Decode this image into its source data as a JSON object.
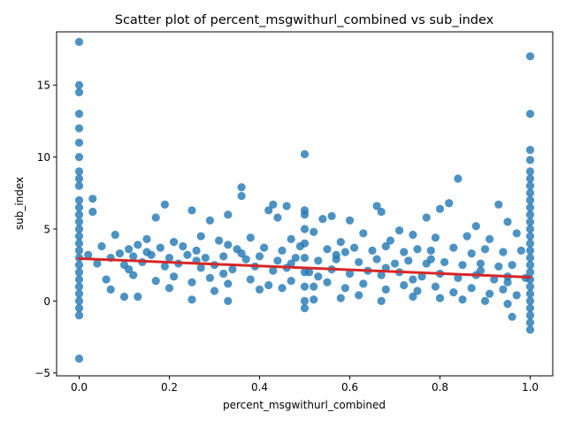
{
  "chart_data": {
    "type": "scatter",
    "title": "Scatter plot of percent_msgwithurl_combined vs sub_index",
    "xlabel": "percent_msgwithurl_combined",
    "ylabel": "sub_index",
    "xlim": [
      -0.05,
      1.05
    ],
    "ylim": [
      -5.2,
      18.7
    ],
    "xticks": [
      0.0,
      0.2,
      0.4,
      0.6,
      0.8,
      1.0
    ],
    "xtick_labels": [
      "0.0",
      "0.2",
      "0.4",
      "0.6",
      "0.8",
      "1.0"
    ],
    "yticks": [
      -5,
      0,
      5,
      10,
      15
    ],
    "ytick_labels": [
      "−5",
      "0",
      "5",
      "10",
      "15"
    ],
    "grid": false,
    "legend": "none",
    "colors": {
      "points": "#1f77b4",
      "regression_line": "#d62728"
    },
    "regression_line": {
      "x": [
        0.0,
        1.0
      ],
      "y": [
        2.95,
        1.65
      ]
    },
    "series": [
      {
        "points": [
          [
            0.0,
            18.0
          ],
          [
            0.0,
            15.0
          ],
          [
            0.0,
            14.5
          ],
          [
            0.0,
            13.0
          ],
          [
            0.0,
            12.0
          ],
          [
            0.0,
            11.0
          ],
          [
            0.0,
            10.0
          ],
          [
            0.0,
            9.0
          ],
          [
            0.0,
            8.5
          ],
          [
            0.0,
            8.0
          ],
          [
            0.0,
            7.0
          ],
          [
            0.0,
            6.5
          ],
          [
            0.0,
            6.0
          ],
          [
            0.0,
            5.5
          ],
          [
            0.0,
            5.0
          ],
          [
            0.0,
            4.5
          ],
          [
            0.0,
            4.0
          ],
          [
            0.0,
            3.5
          ],
          [
            0.0,
            3.0
          ],
          [
            0.0,
            2.5
          ],
          [
            0.0,
            2.0
          ],
          [
            0.0,
            1.5
          ],
          [
            0.0,
            1.0
          ],
          [
            0.0,
            0.5
          ],
          [
            0.0,
            0.0
          ],
          [
            0.0,
            -0.5
          ],
          [
            0.0,
            -1.0
          ],
          [
            0.0,
            -4.0
          ],
          [
            1.0,
            17.0
          ],
          [
            1.0,
            13.0
          ],
          [
            1.0,
            10.5
          ],
          [
            1.0,
            9.8
          ],
          [
            1.0,
            9.0
          ],
          [
            1.0,
            8.5
          ],
          [
            1.0,
            8.0
          ],
          [
            1.0,
            7.5
          ],
          [
            1.0,
            7.0
          ],
          [
            1.0,
            6.5
          ],
          [
            1.0,
            6.0
          ],
          [
            1.0,
            5.5
          ],
          [
            1.0,
            5.0
          ],
          [
            1.0,
            4.5
          ],
          [
            1.0,
            4.0
          ],
          [
            1.0,
            3.5
          ],
          [
            1.0,
            3.0
          ],
          [
            1.0,
            2.5
          ],
          [
            1.0,
            2.0
          ],
          [
            1.0,
            1.5
          ],
          [
            1.0,
            1.0
          ],
          [
            1.0,
            0.5
          ],
          [
            1.0,
            0.0
          ],
          [
            1.0,
            -0.5
          ],
          [
            1.0,
            -1.0
          ],
          [
            1.0,
            -1.5
          ],
          [
            1.0,
            -2.0
          ],
          [
            0.5,
            10.2
          ],
          [
            0.5,
            6.3
          ],
          [
            0.5,
            6.0
          ],
          [
            0.5,
            5.0
          ],
          [
            0.5,
            4.0
          ],
          [
            0.5,
            3.0
          ],
          [
            0.5,
            2.0
          ],
          [
            0.5,
            1.0
          ],
          [
            0.5,
            0.0
          ],
          [
            0.5,
            -0.5
          ],
          [
            0.84,
            8.5
          ],
          [
            0.36,
            7.9
          ],
          [
            0.36,
            7.3
          ],
          [
            0.03,
            7.1
          ],
          [
            0.19,
            6.7
          ],
          [
            0.43,
            6.7
          ],
          [
            0.46,
            6.6
          ],
          [
            0.66,
            6.6
          ],
          [
            0.82,
            6.8
          ],
          [
            0.93,
            6.7
          ],
          [
            0.25,
            6.3
          ],
          [
            0.42,
            6.3
          ],
          [
            0.03,
            6.2
          ],
          [
            0.67,
            6.2
          ],
          [
            0.8,
            6.4
          ],
          [
            0.33,
            6.0
          ],
          [
            0.56,
            5.9
          ],
          [
            0.77,
            5.8
          ],
          [
            0.95,
            5.5
          ],
          [
            0.17,
            5.8
          ],
          [
            0.29,
            5.6
          ],
          [
            0.44,
            5.8
          ],
          [
            0.54,
            5.7
          ],
          [
            0.6,
            5.6
          ],
          [
            0.71,
            4.9
          ],
          [
            0.88,
            5.2
          ],
          [
            0.08,
            4.6
          ],
          [
            0.15,
            4.3
          ],
          [
            0.21,
            4.1
          ],
          [
            0.27,
            4.5
          ],
          [
            0.31,
            4.2
          ],
          [
            0.38,
            4.4
          ],
          [
            0.47,
            4.3
          ],
          [
            0.52,
            4.8
          ],
          [
            0.58,
            4.1
          ],
          [
            0.63,
            4.7
          ],
          [
            0.69,
            4.2
          ],
          [
            0.74,
            4.6
          ],
          [
            0.79,
            4.4
          ],
          [
            0.86,
            4.5
          ],
          [
            0.91,
            4.3
          ],
          [
            0.97,
            4.7
          ],
          [
            0.05,
            3.8
          ],
          [
            0.11,
            3.6
          ],
          [
            0.13,
            3.9
          ],
          [
            0.18,
            3.7
          ],
          [
            0.23,
            3.8
          ],
          [
            0.26,
            3.5
          ],
          [
            0.33,
            3.9
          ],
          [
            0.35,
            3.6
          ],
          [
            0.41,
            3.7
          ],
          [
            0.45,
            3.5
          ],
          [
            0.49,
            3.8
          ],
          [
            0.55,
            3.6
          ],
          [
            0.59,
            3.4
          ],
          [
            0.61,
            3.7
          ],
          [
            0.65,
            3.5
          ],
          [
            0.68,
            3.8
          ],
          [
            0.72,
            3.4
          ],
          [
            0.75,
            3.6
          ],
          [
            0.78,
            3.5
          ],
          [
            0.83,
            3.7
          ],
          [
            0.87,
            3.3
          ],
          [
            0.9,
            3.6
          ],
          [
            0.94,
            3.4
          ],
          [
            0.98,
            3.5
          ],
          [
            0.02,
            3.2
          ],
          [
            0.07,
            3.0
          ],
          [
            0.09,
            3.3
          ],
          [
            0.12,
            3.1
          ],
          [
            0.16,
            3.2
          ],
          [
            0.2,
            3.0
          ],
          [
            0.24,
            3.2
          ],
          [
            0.28,
            3.0
          ],
          [
            0.32,
            3.1
          ],
          [
            0.37,
            2.9
          ],
          [
            0.4,
            3.1
          ],
          [
            0.44,
            2.8
          ],
          [
            0.48,
            3.0
          ],
          [
            0.53,
            2.8
          ],
          [
            0.57,
            2.9
          ],
          [
            0.62,
            2.7
          ],
          [
            0.66,
            2.9
          ],
          [
            0.7,
            2.6
          ],
          [
            0.73,
            2.8
          ],
          [
            0.77,
            2.6
          ],
          [
            0.81,
            2.7
          ],
          [
            0.85,
            2.5
          ],
          [
            0.89,
            2.6
          ],
          [
            0.93,
            2.4
          ],
          [
            0.96,
            2.5
          ],
          [
            0.04,
            2.6
          ],
          [
            0.1,
            2.5
          ],
          [
            0.14,
            2.7
          ],
          [
            0.19,
            2.4
          ],
          [
            0.22,
            2.6
          ],
          [
            0.27,
            2.3
          ],
          [
            0.3,
            2.5
          ],
          [
            0.34,
            2.2
          ],
          [
            0.39,
            2.4
          ],
          [
            0.43,
            2.1
          ],
          [
            0.46,
            2.3
          ],
          [
            0.51,
            2.0
          ],
          [
            0.56,
            2.2
          ],
          [
            0.6,
            1.9
          ],
          [
            0.64,
            2.1
          ],
          [
            0.67,
            1.8
          ],
          [
            0.71,
            2.0
          ],
          [
            0.76,
            1.7
          ],
          [
            0.8,
            1.9
          ],
          [
            0.84,
            1.6
          ],
          [
            0.88,
            1.8
          ],
          [
            0.92,
            1.5
          ],
          [
            0.95,
            1.7
          ],
          [
            0.99,
            1.6
          ],
          [
            0.06,
            1.5
          ],
          [
            0.12,
            1.8
          ],
          [
            0.17,
            1.4
          ],
          [
            0.21,
            1.7
          ],
          [
            0.25,
            1.3
          ],
          [
            0.29,
            1.6
          ],
          [
            0.33,
            1.2
          ],
          [
            0.38,
            1.5
          ],
          [
            0.42,
            1.1
          ],
          [
            0.47,
            1.4
          ],
          [
            0.52,
            1.0
          ],
          [
            0.55,
            1.3
          ],
          [
            0.59,
            0.9
          ],
          [
            0.63,
            1.2
          ],
          [
            0.68,
            0.8
          ],
          [
            0.72,
            1.1
          ],
          [
            0.75,
            0.7
          ],
          [
            0.79,
            1.0
          ],
          [
            0.83,
            0.6
          ],
          [
            0.87,
            0.9
          ],
          [
            0.91,
            0.5
          ],
          [
            0.94,
            0.8
          ],
          [
            0.97,
            0.4
          ],
          [
            0.07,
            0.8
          ],
          [
            0.1,
            0.3
          ],
          [
            0.13,
            0.3
          ],
          [
            0.2,
            0.9
          ],
          [
            0.25,
            0.1
          ],
          [
            0.3,
            0.7
          ],
          [
            0.33,
            0.0
          ],
          [
            0.4,
            0.8
          ],
          [
            0.45,
            0.9
          ],
          [
            0.52,
            0.1
          ],
          [
            0.58,
            0.2
          ],
          [
            0.62,
            0.4
          ],
          [
            0.67,
            0.0
          ],
          [
            0.74,
            0.3
          ],
          [
            0.8,
            0.2
          ],
          [
            0.85,
            0.1
          ],
          [
            0.9,
            0.0
          ],
          [
            0.95,
            -0.2
          ],
          [
            0.96,
            -1.1
          ],
          [
            0.15,
            3.4
          ],
          [
            0.36,
            3.3
          ],
          [
            0.57,
            3.2
          ],
          [
            0.78,
            2.9
          ],
          [
            0.26,
            2.8
          ],
          [
            0.47,
            2.6
          ],
          [
            0.68,
            2.3
          ],
          [
            0.89,
            2.1
          ],
          [
            0.11,
            2.2
          ],
          [
            0.32,
            1.9
          ],
          [
            0.53,
            1.7
          ],
          [
            0.74,
            1.5
          ],
          [
            0.95,
            1.3
          ]
        ]
      }
    ]
  }
}
